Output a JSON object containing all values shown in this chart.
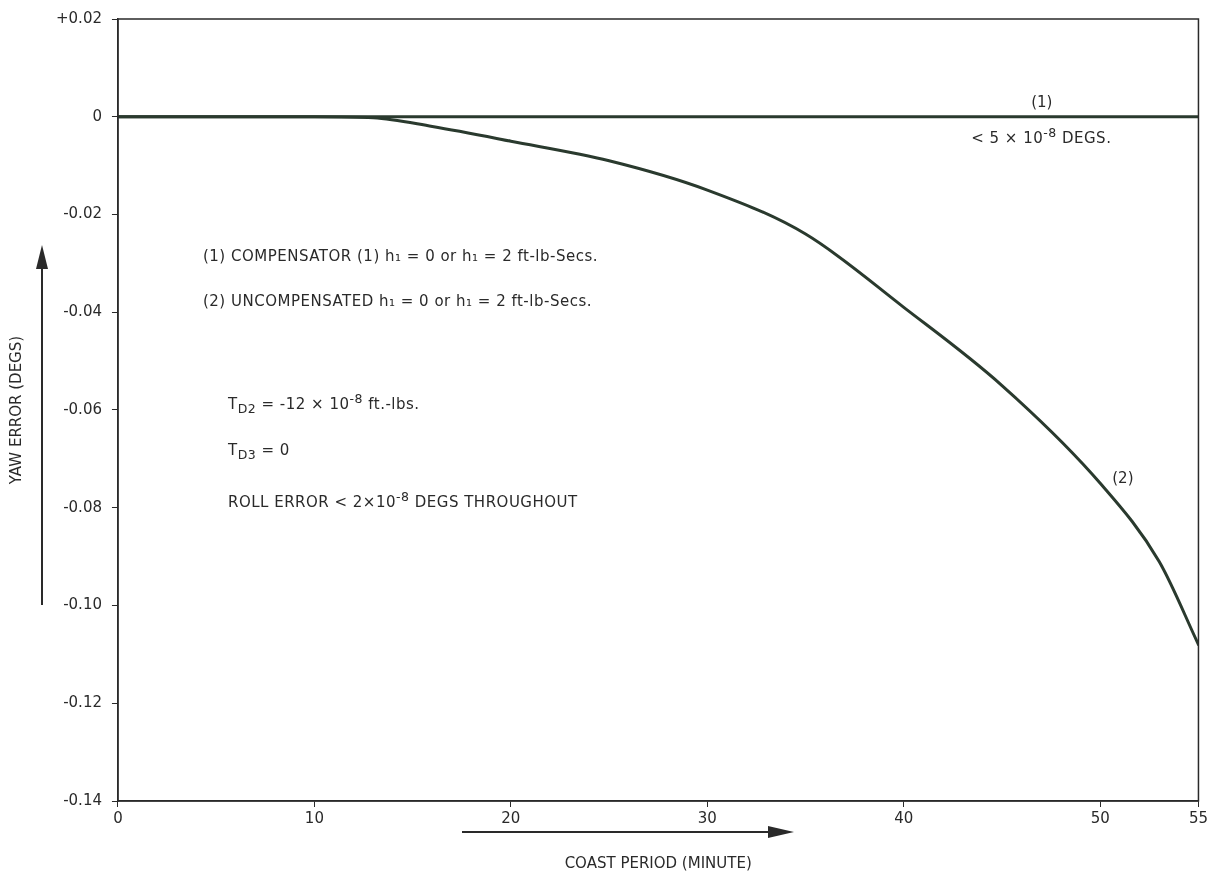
{
  "chart_data": {
    "type": "line",
    "xlabel": "COAST PERIOD (MINUTE)",
    "ylabel": "YAW ERROR (DEGS)",
    "xlim": [
      0,
      55
    ],
    "xticks": [
      0,
      10,
      20,
      30,
      40,
      50,
      55
    ],
    "ylim": [
      -0.14,
      0.02
    ],
    "yticks": [
      {
        "value": 0.02,
        "label": "+0.02"
      },
      0,
      -0.02,
      -0.04,
      -0.06,
      -0.08,
      {
        "value": -0.1,
        "label": "-0.10"
      },
      -0.12,
      -0.14
    ],
    "grid": false,
    "marker": "none",
    "line_style": "solid",
    "series": [
      {
        "name": "(1)",
        "color": "#2a3a2e",
        "x": [
          0,
          55
        ],
        "values": [
          0,
          0
        ]
      },
      {
        "name": "(2)",
        "color": "#2a3a2e",
        "x": [
          0,
          10,
          13,
          16,
          20,
          25,
          30,
          35,
          40,
          45,
          50,
          53,
          55
        ],
        "values": [
          0,
          0,
          -0.0002,
          -0.002,
          -0.005,
          -0.009,
          -0.015,
          -0.024,
          -0.039,
          -0.055,
          -0.075,
          -0.091,
          -0.108
        ]
      }
    ],
    "annotations": [
      {
        "text": "< 5 × 10$^{-8}$ DEGS.",
        "x": 47,
        "y": 0
      },
      "(1) COMPENSATOR (1)   h₁ = 0  or h₁ = 2 ft-lb-Secs.",
      "(2) UNCOMPENSATED  h₁ = 0  or h₁ = 2 ft-lb-Secs.",
      "T$_{D2}$ = -12 × 10$^{-8}$ ft.-lbs.",
      "T$_{D3}$ = 0",
      "ROLL ERROR < 2×10$^{-8}$ DEGS THROUGHOUT"
    ]
  }
}
